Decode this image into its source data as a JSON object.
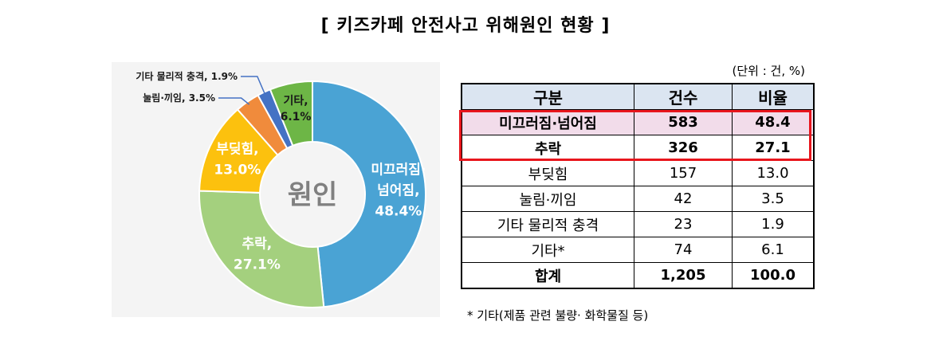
{
  "title": "[ 키즈카페 안전사고 위해원인 현황 ]",
  "unit_note": "(단위 : 건, %)",
  "center_label": "원인",
  "chart_data": {
    "type": "pie",
    "title": "",
    "categories": [
      "미끄러짐·넘어짐",
      "추락",
      "부딪힘",
      "눌림·끼임",
      "기타 물리적 충격",
      "기타"
    ],
    "values": [
      48.4,
      27.1,
      13.0,
      3.5,
      1.9,
      6.1
    ],
    "colors": [
      "#4aa3d4",
      "#a4d07e",
      "#fcc10e",
      "#f08b3c",
      "#4472c4",
      "#6db646"
    ],
    "slice_labels": [
      {
        "lines": [
          "미끄러짐·",
          "넘어짐,",
          "48.4%"
        ]
      },
      {
        "lines": [
          "추락,",
          "27.1%"
        ]
      },
      {
        "lines": [
          "부딪힘,",
          "13.0%"
        ]
      },
      {
        "lines": []
      },
      {
        "lines": []
      },
      {
        "lines": [
          "기타,",
          "6.1%"
        ]
      }
    ],
    "callouts": [
      {
        "index": 3,
        "text": "눌림·끼임, 3.5%"
      },
      {
        "index": 4,
        "text": "기타 물리적 충격, 1.9%"
      }
    ]
  },
  "table": {
    "headers": [
      "구분",
      "건수",
      "비율"
    ],
    "rows": [
      [
        "미끄러짐·넘어짐",
        "583",
        "48.4"
      ],
      [
        "추락",
        "326",
        "27.1"
      ],
      [
        "부딪힘",
        "157",
        "13.0"
      ],
      [
        "눌림·끼임",
        "42",
        "3.5"
      ],
      [
        "기타 물리적 충격",
        "23",
        "1.9"
      ],
      [
        "기타*",
        "74",
        "6.1"
      ],
      [
        "합계",
        "1,205",
        "100.0"
      ]
    ]
  },
  "footnote": "* 기타(제품 관련 불량· 화학물질 등)"
}
